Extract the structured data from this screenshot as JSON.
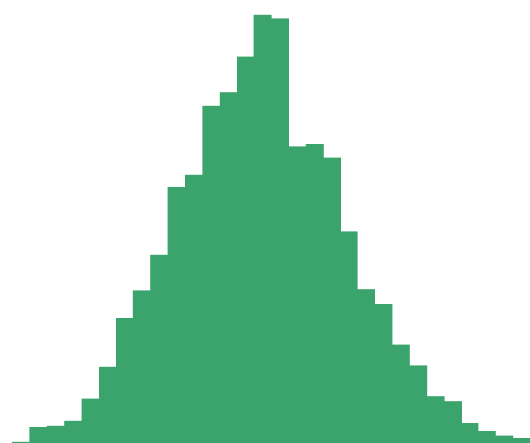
{
  "chart_data": {
    "type": "bar",
    "chart_subtype": "histogram",
    "values": [
      1,
      15,
      16,
      21,
      42,
      71,
      117,
      143,
      176,
      240,
      251,
      316,
      329,
      362,
      401,
      398,
      278,
      280,
      267,
      198,
      144,
      130,
      92,
      73,
      44,
      39,
      19,
      11,
      7,
      5,
      2
    ],
    "ylim": [
      0,
      405
    ],
    "bar_color": "#3aa46c",
    "gridlines": false,
    "legend": false
  }
}
